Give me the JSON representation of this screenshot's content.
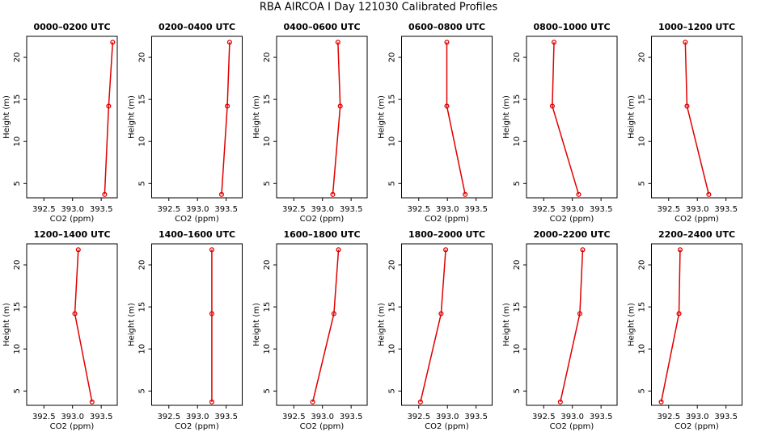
{
  "title": "RBA AIRCOA I  Day 121030  Calibrated Profiles",
  "chart_data": [
    {
      "type": "line",
      "title": "0000–0200 UTC",
      "xlabel": "CO2 (ppm)",
      "ylabel": "Height (m)",
      "color": "#e00000",
      "x": [
        393.56,
        393.63,
        393.7
      ],
      "y": [
        3.7,
        14.2,
        21.8
      ],
      "xlim": [
        392.2,
        393.78
      ],
      "ylim": [
        3.3,
        22.5
      ],
      "xticks": [
        392.5,
        {
          "value": 393,
          "label": "393.0"
        },
        393.5
      ],
      "yticks": [
        5,
        10,
        15,
        20
      ]
    },
    {
      "type": "line",
      "title": "0200–0400 UTC",
      "xlabel": "CO2 (ppm)",
      "ylabel": "Height (m)",
      "color": "#e00000",
      "x": [
        393.42,
        393.52,
        393.56
      ],
      "y": [
        3.7,
        14.2,
        21.8
      ],
      "xlim": [
        392.2,
        393.78
      ],
      "ylim": [
        3.3,
        22.5
      ],
      "xticks": [
        392.5,
        {
          "value": 393,
          "label": "393.0"
        },
        393.5
      ],
      "yticks": [
        5,
        10,
        15,
        20
      ]
    },
    {
      "type": "line",
      "title": "0400–0600 UTC",
      "xlabel": "CO2 (ppm)",
      "ylabel": "Height (m)",
      "color": "#e00000",
      "x": [
        393.18,
        393.31,
        393.27
      ],
      "y": [
        3.7,
        14.2,
        21.8
      ],
      "xlim": [
        392.2,
        393.78
      ],
      "ylim": [
        3.3,
        22.5
      ],
      "xticks": [
        392.5,
        {
          "value": 393,
          "label": "393.0"
        },
        393.5
      ],
      "yticks": [
        5,
        10,
        15,
        20
      ]
    },
    {
      "type": "line",
      "title": "0600–0800 UTC",
      "xlabel": "CO2 (ppm)",
      "ylabel": "Height (m)",
      "color": "#e00000",
      "x": [
        393.31,
        392.99,
        392.99
      ],
      "y": [
        3.7,
        14.2,
        21.8
      ],
      "xlim": [
        392.2,
        393.78
      ],
      "ylim": [
        3.3,
        22.5
      ],
      "xticks": [
        392.5,
        {
          "value": 393,
          "label": "393.0"
        },
        393.5
      ],
      "yticks": [
        5,
        10,
        15,
        20
      ]
    },
    {
      "type": "line",
      "title": "0800–1000 UTC",
      "xlabel": "CO2 (ppm)",
      "ylabel": "Height (m)",
      "color": "#e00000",
      "x": [
        393.11,
        392.65,
        392.68
      ],
      "y": [
        3.7,
        14.2,
        21.8
      ],
      "xlim": [
        392.2,
        393.78
      ],
      "ylim": [
        3.3,
        22.5
      ],
      "xticks": [
        392.5,
        {
          "value": 393,
          "label": "393.0"
        },
        393.5
      ],
      "yticks": [
        5,
        10,
        15,
        20
      ]
    },
    {
      "type": "line",
      "title": "1000–1200 UTC",
      "xlabel": "CO2 (ppm)",
      "ylabel": "Height (m)",
      "color": "#e00000",
      "x": [
        393.2,
        392.82,
        392.79
      ],
      "y": [
        3.7,
        14.2,
        21.8
      ],
      "xlim": [
        392.2,
        393.78
      ],
      "ylim": [
        3.3,
        22.5
      ],
      "xticks": [
        392.5,
        {
          "value": 393,
          "label": "393.0"
        },
        393.5
      ],
      "yticks": [
        5,
        10,
        15,
        20
      ]
    },
    {
      "type": "line",
      "title": "1200–1400 UTC",
      "xlabel": "CO2 (ppm)",
      "ylabel": "Height (m)",
      "color": "#e00000",
      "x": [
        393.34,
        393.04,
        393.1
      ],
      "y": [
        3.7,
        14.2,
        21.8
      ],
      "xlim": [
        392.2,
        393.78
      ],
      "ylim": [
        3.3,
        22.5
      ],
      "xticks": [
        392.5,
        {
          "value": 393,
          "label": "393.0"
        },
        393.5
      ],
      "yticks": [
        5,
        10,
        15,
        20
      ]
    },
    {
      "type": "line",
      "title": "1400–1600 UTC",
      "xlabel": "CO2 (ppm)",
      "ylabel": "Height (m)",
      "color": "#e00000",
      "x": [
        393.25,
        393.25,
        393.25
      ],
      "y": [
        3.7,
        14.2,
        21.8
      ],
      "xlim": [
        392.2,
        393.78
      ],
      "ylim": [
        3.3,
        22.5
      ],
      "xticks": [
        392.5,
        {
          "value": 393,
          "label": "393.0"
        },
        393.5
      ],
      "yticks": [
        5,
        10,
        15,
        20
      ]
    },
    {
      "type": "line",
      "title": "1600–1800 UTC",
      "xlabel": "CO2 (ppm)",
      "ylabel": "Height (m)",
      "color": "#e00000",
      "x": [
        392.83,
        393.2,
        393.28
      ],
      "y": [
        3.7,
        14.2,
        21.8
      ],
      "xlim": [
        392.2,
        393.78
      ],
      "ylim": [
        3.3,
        22.5
      ],
      "xticks": [
        392.5,
        {
          "value": 393,
          "label": "393.0"
        },
        393.5
      ],
      "yticks": [
        5,
        10,
        15,
        20
      ]
    },
    {
      "type": "line",
      "title": "1800–2000 UTC",
      "xlabel": "CO2 (ppm)",
      "ylabel": "Height (m)",
      "color": "#e00000",
      "x": [
        392.53,
        392.89,
        392.97
      ],
      "y": [
        3.7,
        14.2,
        21.8
      ],
      "xlim": [
        392.2,
        393.78
      ],
      "ylim": [
        3.3,
        22.5
      ],
      "xticks": [
        392.5,
        {
          "value": 393,
          "label": "393.0"
        },
        393.5
      ],
      "yticks": [
        5,
        10,
        15,
        20
      ]
    },
    {
      "type": "line",
      "title": "2000–2200 UTC",
      "xlabel": "CO2 (ppm)",
      "ylabel": "Height (m)",
      "color": "#e00000",
      "x": [
        392.79,
        393.13,
        393.18
      ],
      "y": [
        3.7,
        14.2,
        21.8
      ],
      "xlim": [
        392.2,
        393.78
      ],
      "ylim": [
        3.3,
        22.5
      ],
      "xticks": [
        392.5,
        {
          "value": 393,
          "label": "393.0"
        },
        393.5
      ],
      "yticks": [
        5,
        10,
        15,
        20
      ]
    },
    {
      "type": "line",
      "title": "2200–2400 UTC",
      "xlabel": "CO2 (ppm)",
      "ylabel": "Height (m)",
      "color": "#e00000",
      "x": [
        392.37,
        392.68,
        392.7
      ],
      "y": [
        3.7,
        14.2,
        21.8
      ],
      "xlim": [
        392.2,
        393.78
      ],
      "ylim": [
        3.3,
        22.5
      ],
      "xticks": [
        392.5,
        {
          "value": 393,
          "label": "393.0"
        },
        393.5
      ],
      "yticks": [
        5,
        10,
        15,
        20
      ]
    }
  ]
}
